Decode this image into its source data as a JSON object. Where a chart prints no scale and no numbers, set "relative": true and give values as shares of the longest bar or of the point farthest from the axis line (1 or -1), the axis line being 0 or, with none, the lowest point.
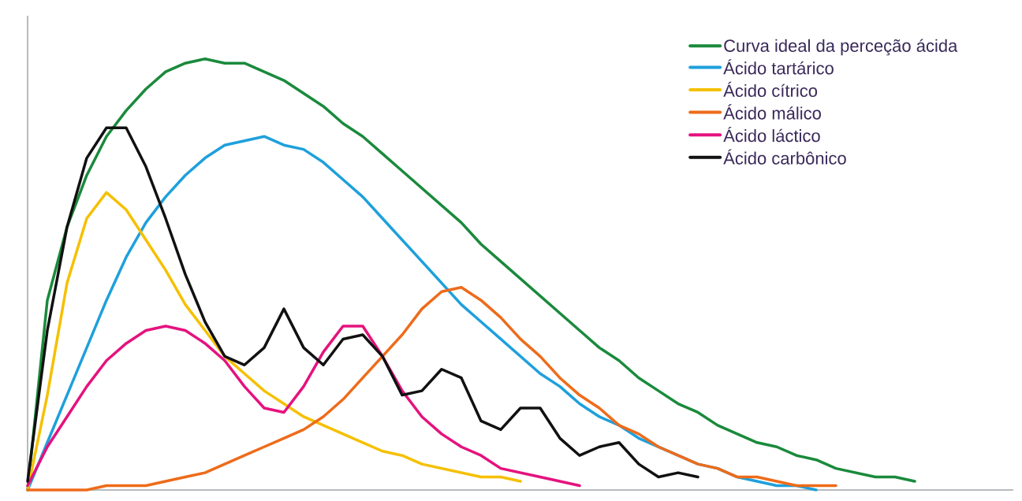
{
  "chart_data": {
    "type": "line",
    "relative": true,
    "legend": "top right",
    "categories": [
      null,
      null,
      null,
      null,
      null,
      null,
      null,
      null,
      null,
      null,
      null,
      null,
      null,
      null,
      null,
      null,
      null,
      null,
      null,
      null,
      null,
      null,
      null,
      null,
      null,
      null,
      null,
      null,
      null,
      null,
      null,
      null,
      null,
      null,
      null,
      null,
      null,
      null,
      null,
      null,
      null,
      null,
      null,
      null,
      null,
      null,
      null,
      null,
      null,
      null,
      null
    ],
    "series": [
      {
        "name": "Curva ideal da perceção ácida",
        "color": "#1a8a3c",
        "values": [
          0,
          0.44,
          0.61,
          0.73,
          0.82,
          0.88,
          0.93,
          0.97,
          0.99,
          1,
          0.99,
          0.99,
          0.97,
          0.95,
          0.92,
          0.89,
          0.85,
          0.82,
          0.78,
          0.74,
          0.7,
          0.66,
          0.62,
          0.57,
          0.53,
          0.49,
          0.45,
          0.41,
          0.37,
          0.33,
          0.3,
          0.26,
          0.23,
          0.2,
          0.18,
          0.15,
          0.13,
          0.11,
          0.1,
          0.08,
          0.07,
          0.05,
          0.04,
          0.03,
          0.03,
          0.02,
          null,
          null,
          null,
          null,
          null
        ]
      },
      {
        "name": "Ácido tartárico",
        "color": "#1ea0dc",
        "values": [
          0,
          0.11,
          0.22,
          0.33,
          0.44,
          0.54,
          0.62,
          0.68,
          0.73,
          0.77,
          0.8,
          0.81,
          0.82,
          0.8,
          0.79,
          0.76,
          0.72,
          0.68,
          0.63,
          0.58,
          0.53,
          0.48,
          0.43,
          0.39,
          0.35,
          0.31,
          0.27,
          0.24,
          0.2,
          0.17,
          0.15,
          0.12,
          0.1,
          0.08,
          0.06,
          0.05,
          0.03,
          0.02,
          0.01,
          0.01,
          0,
          null,
          null,
          null,
          null,
          null,
          null,
          null,
          null,
          null,
          null
        ]
      },
      {
        "name": "Ácido cítrico",
        "color": "#f5c000",
        "values": [
          0,
          0.22,
          0.48,
          0.63,
          0.69,
          0.65,
          0.58,
          0.51,
          0.43,
          0.37,
          0.31,
          0.27,
          0.23,
          0.2,
          0.17,
          0.15,
          0.13,
          0.11,
          0.09,
          0.08,
          0.06,
          0.05,
          0.04,
          0.03,
          0.03,
          0.02,
          null,
          null,
          null,
          null,
          null,
          null,
          null,
          null,
          null,
          null,
          null,
          null,
          null,
          null,
          null,
          null,
          null,
          null,
          null,
          null,
          null,
          null,
          null,
          null,
          null
        ]
      },
      {
        "name": "Ácido málico",
        "color": "#ee6b1a",
        "values": [
          0,
          0,
          0,
          0,
          0.01,
          0.01,
          0.01,
          0.02,
          0.03,
          0.04,
          0.06,
          0.08,
          0.1,
          0.12,
          0.14,
          0.17,
          0.21,
          0.26,
          0.31,
          0.36,
          0.42,
          0.46,
          0.47,
          0.44,
          0.4,
          0.35,
          0.31,
          0.26,
          0.22,
          0.19,
          0.15,
          0.13,
          0.1,
          0.08,
          0.06,
          0.05,
          0.03,
          0.03,
          0.02,
          0.01,
          0.01,
          0.01,
          null,
          null,
          null,
          null,
          null,
          null,
          null,
          null,
          null
        ]
      },
      {
        "name": "Ácido láctico",
        "color": "#e5127e",
        "values": [
          0.01,
          0.1,
          0.17,
          0.24,
          0.3,
          0.34,
          0.37,
          0.38,
          0.37,
          0.34,
          0.3,
          0.24,
          0.19,
          0.18,
          0.24,
          0.32,
          0.38,
          0.38,
          0.31,
          0.23,
          0.17,
          0.13,
          0.1,
          0.08,
          0.05,
          0.04,
          0.03,
          0.02,
          0.01,
          null,
          null,
          null,
          null,
          null,
          null,
          null,
          null,
          null,
          null,
          null,
          null,
          null,
          null,
          null,
          null,
          null,
          null,
          null,
          null,
          null,
          null
        ]
      },
      {
        "name": "Ácido carbônico",
        "color": "#111111",
        "values": [
          0.02,
          0.37,
          0.61,
          0.77,
          0.84,
          0.84,
          0.75,
          0.63,
          0.5,
          0.39,
          0.31,
          0.29,
          0.33,
          0.42,
          0.33,
          0.29,
          0.35,
          0.36,
          0.31,
          0.22,
          0.23,
          0.28,
          0.26,
          0.16,
          0.14,
          0.19,
          0.19,
          0.12,
          0.08,
          0.1,
          0.11,
          0.06,
          0.03,
          0.04,
          0.03,
          null,
          null,
          null,
          null,
          null,
          null,
          null,
          null,
          null,
          null,
          null,
          null,
          null,
          null,
          null,
          null
        ]
      }
    ]
  }
}
